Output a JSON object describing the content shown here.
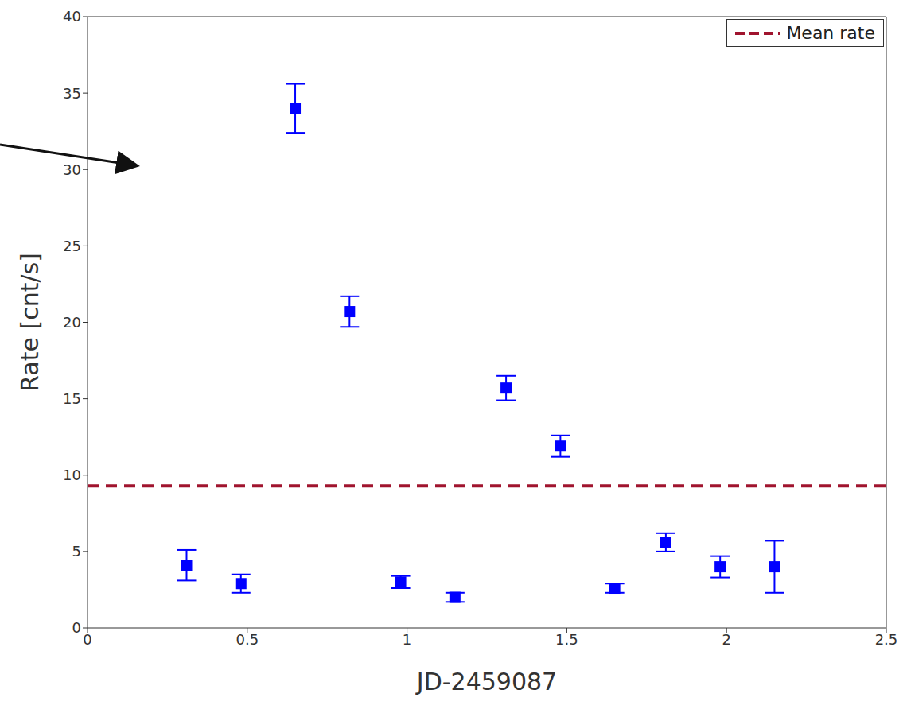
{
  "chart_data": {
    "type": "scatter",
    "x_label": "JD-2459087",
    "y_label": "Rate [cnt/s]",
    "x": [
      0.31,
      0.48,
      0.65,
      0.82,
      0.98,
      1.15,
      1.31,
      1.48,
      1.65,
      1.81,
      1.98,
      2.15
    ],
    "values": [
      4.1,
      2.9,
      34.0,
      20.7,
      3.0,
      2.0,
      15.7,
      11.9,
      2.6,
      5.6,
      4.0,
      4.0
    ],
    "errors": [
      1.0,
      0.6,
      1.6,
      1.0,
      0.4,
      0.3,
      0.8,
      0.7,
      0.3,
      0.6,
      0.7,
      1.7
    ],
    "color": "#0000ff",
    "marker": "square",
    "xlim": [
      0,
      2.5
    ],
    "xticks": [
      0,
      0.5,
      1,
      1.5,
      2,
      2.5
    ],
    "ylim": [
      0,
      40
    ],
    "yticks": [
      0,
      5,
      10,
      15,
      20,
      25,
      30,
      35,
      40
    ],
    "reference_line": {
      "name": "Mean rate",
      "value": 9.3,
      "color": "#a0142e",
      "line_style": "dashed"
    },
    "legend": "top-right"
  }
}
